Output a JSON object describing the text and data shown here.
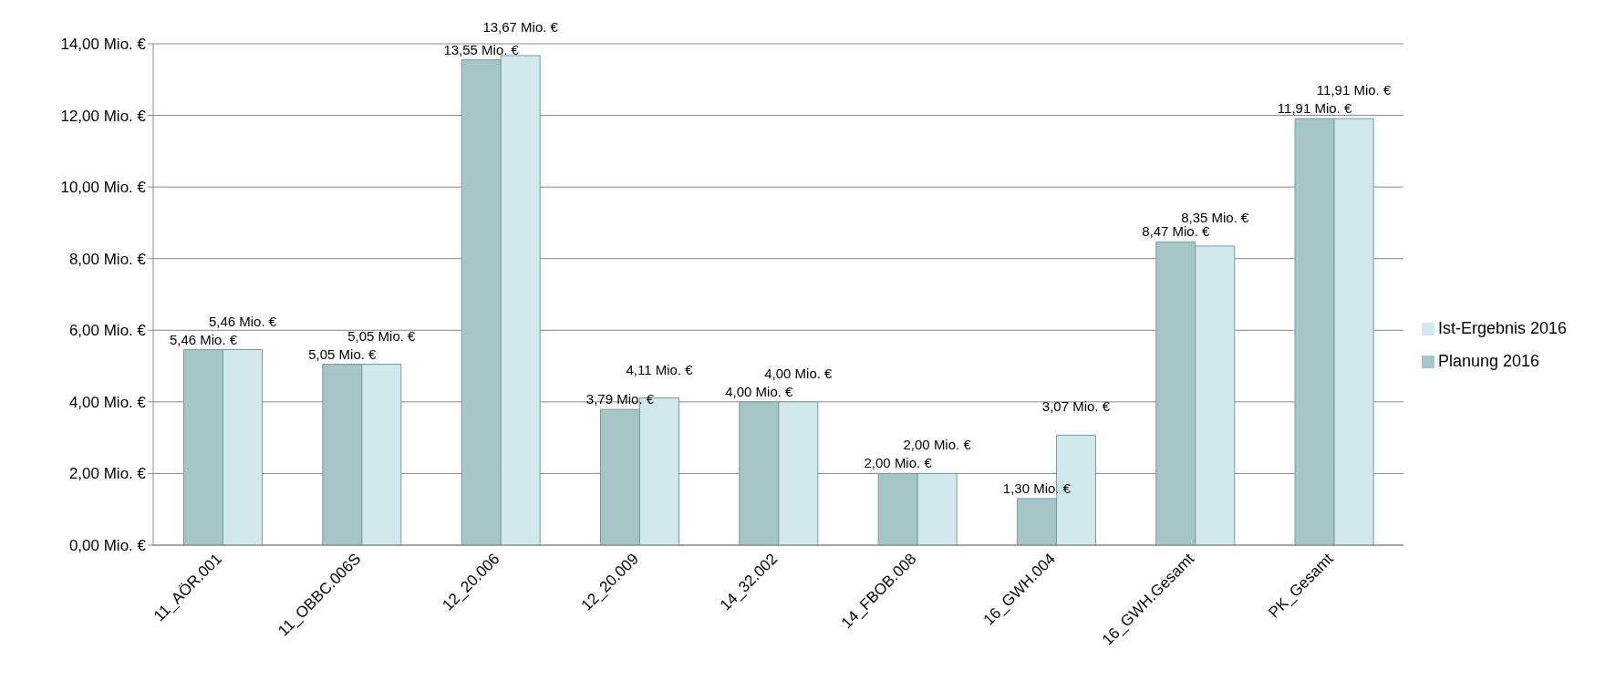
{
  "chart_data": {
    "type": "bar",
    "categories": [
      "11_AÖR.001",
      "11_OBBC.006S",
      "12_20.006",
      "12_20.009",
      "14_32.002",
      "14_FBOB.008",
      "16_GWH.004",
      "16_GWH.Gesamt",
      "PK_Gesamt"
    ],
    "series": [
      {
        "name": "Planung 2016",
        "color": "#a5c5c7",
        "values": [
          5.46,
          5.05,
          13.55,
          3.79,
          4.0,
          2.0,
          1.3,
          8.47,
          11.91
        ],
        "value_labels": [
          "5,46 Mio. €",
          "5,05 Mio. €",
          "13,55 Mio. €",
          "3,79 Mio. €",
          "4,00 Mio. €",
          "2,00 Mio. €",
          "1,30 Mio. €",
          "8,47 Mio. €",
          "11,91 Mio. €"
        ]
      },
      {
        "name": "Ist-Ergebnis 2016",
        "color": "#d1e8ec",
        "values": [
          5.46,
          5.05,
          13.67,
          4.11,
          4.0,
          2.0,
          3.07,
          8.35,
          11.91
        ],
        "value_labels": [
          "5,46 Mio. €",
          "5,05 Mio. €",
          "13,67 Mio. €",
          "4,11 Mio. €",
          "4,00 Mio. €",
          "2,00 Mio. €",
          "3,07 Mio. €",
          "8,35 Mio. €",
          "11,91 Mio. €"
        ]
      }
    ],
    "ylim": [
      0,
      14
    ],
    "yticks": [
      {
        "value": 0,
        "label": "0,00 Mio. €"
      },
      {
        "value": 2,
        "label": "2,00 Mio. €"
      },
      {
        "value": 4,
        "label": "4,00 Mio. €"
      },
      {
        "value": 6,
        "label": "6,00 Mio. €"
      },
      {
        "value": 8,
        "label": "8,00 Mio. €"
      },
      {
        "value": 10,
        "label": "10,00 Mio. €"
      },
      {
        "value": 12,
        "label": "12,00 Mio. €"
      },
      {
        "value": 14,
        "label": "14,00 Mio. €"
      }
    ],
    "grid": "y",
    "legend": "right"
  }
}
